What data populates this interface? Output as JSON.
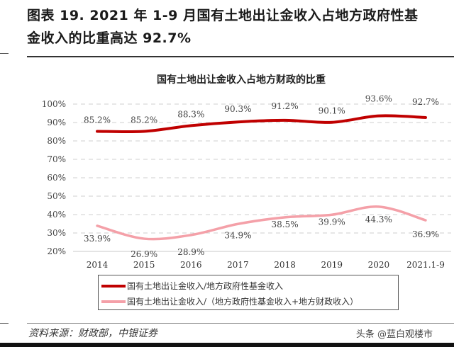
{
  "figure": {
    "title_line1": "图表 19. 2021 年 1-9 月国有土地出让金收入占地方政府性基",
    "title_line2": "金收入的比重高达 92.7%",
    "source": "资料来源：财政部，中银证券",
    "watermark": "头条 @蓝白观楼市"
  },
  "chart_data": {
    "type": "line",
    "title": "国有土地出让金收入占地方财政的比重",
    "xlabel": "",
    "ylabel": "",
    "ylim": [
      0.2,
      1.0
    ],
    "yticks": [
      "20%",
      "30%",
      "40%",
      "50%",
      "60%",
      "70%",
      "80%",
      "90%",
      "100%"
    ],
    "grid": true,
    "legend_position": "bottom",
    "categories": [
      "2014",
      "2015",
      "2016",
      "2017",
      "2018",
      "2019",
      "2020",
      "2021.1-9"
    ],
    "series": [
      {
        "name": "国有土地出让金收入/地方政府性基金收入",
        "color": "#c00000",
        "values": [
          85.2,
          85.2,
          88.3,
          90.3,
          91.2,
          90.1,
          93.6,
          92.7
        ],
        "labels": [
          "85.2%",
          "85.2%",
          "88.3%",
          "90.3%",
          "91.2%",
          "90.1%",
          "93.6%",
          "92.7%"
        ]
      },
      {
        "name": "国有土地出让金收入/（地方政府性基金收入+地方财政收入）",
        "color": "#f4a0a8",
        "values": [
          33.9,
          26.9,
          28.9,
          34.9,
          38.5,
          39.9,
          44.3,
          36.9
        ],
        "labels": [
          "33.9%",
          "26.9%",
          "28.9%",
          "34.9%",
          "38.5%",
          "39.9%",
          "44.3%",
          "36.9%"
        ]
      }
    ]
  }
}
